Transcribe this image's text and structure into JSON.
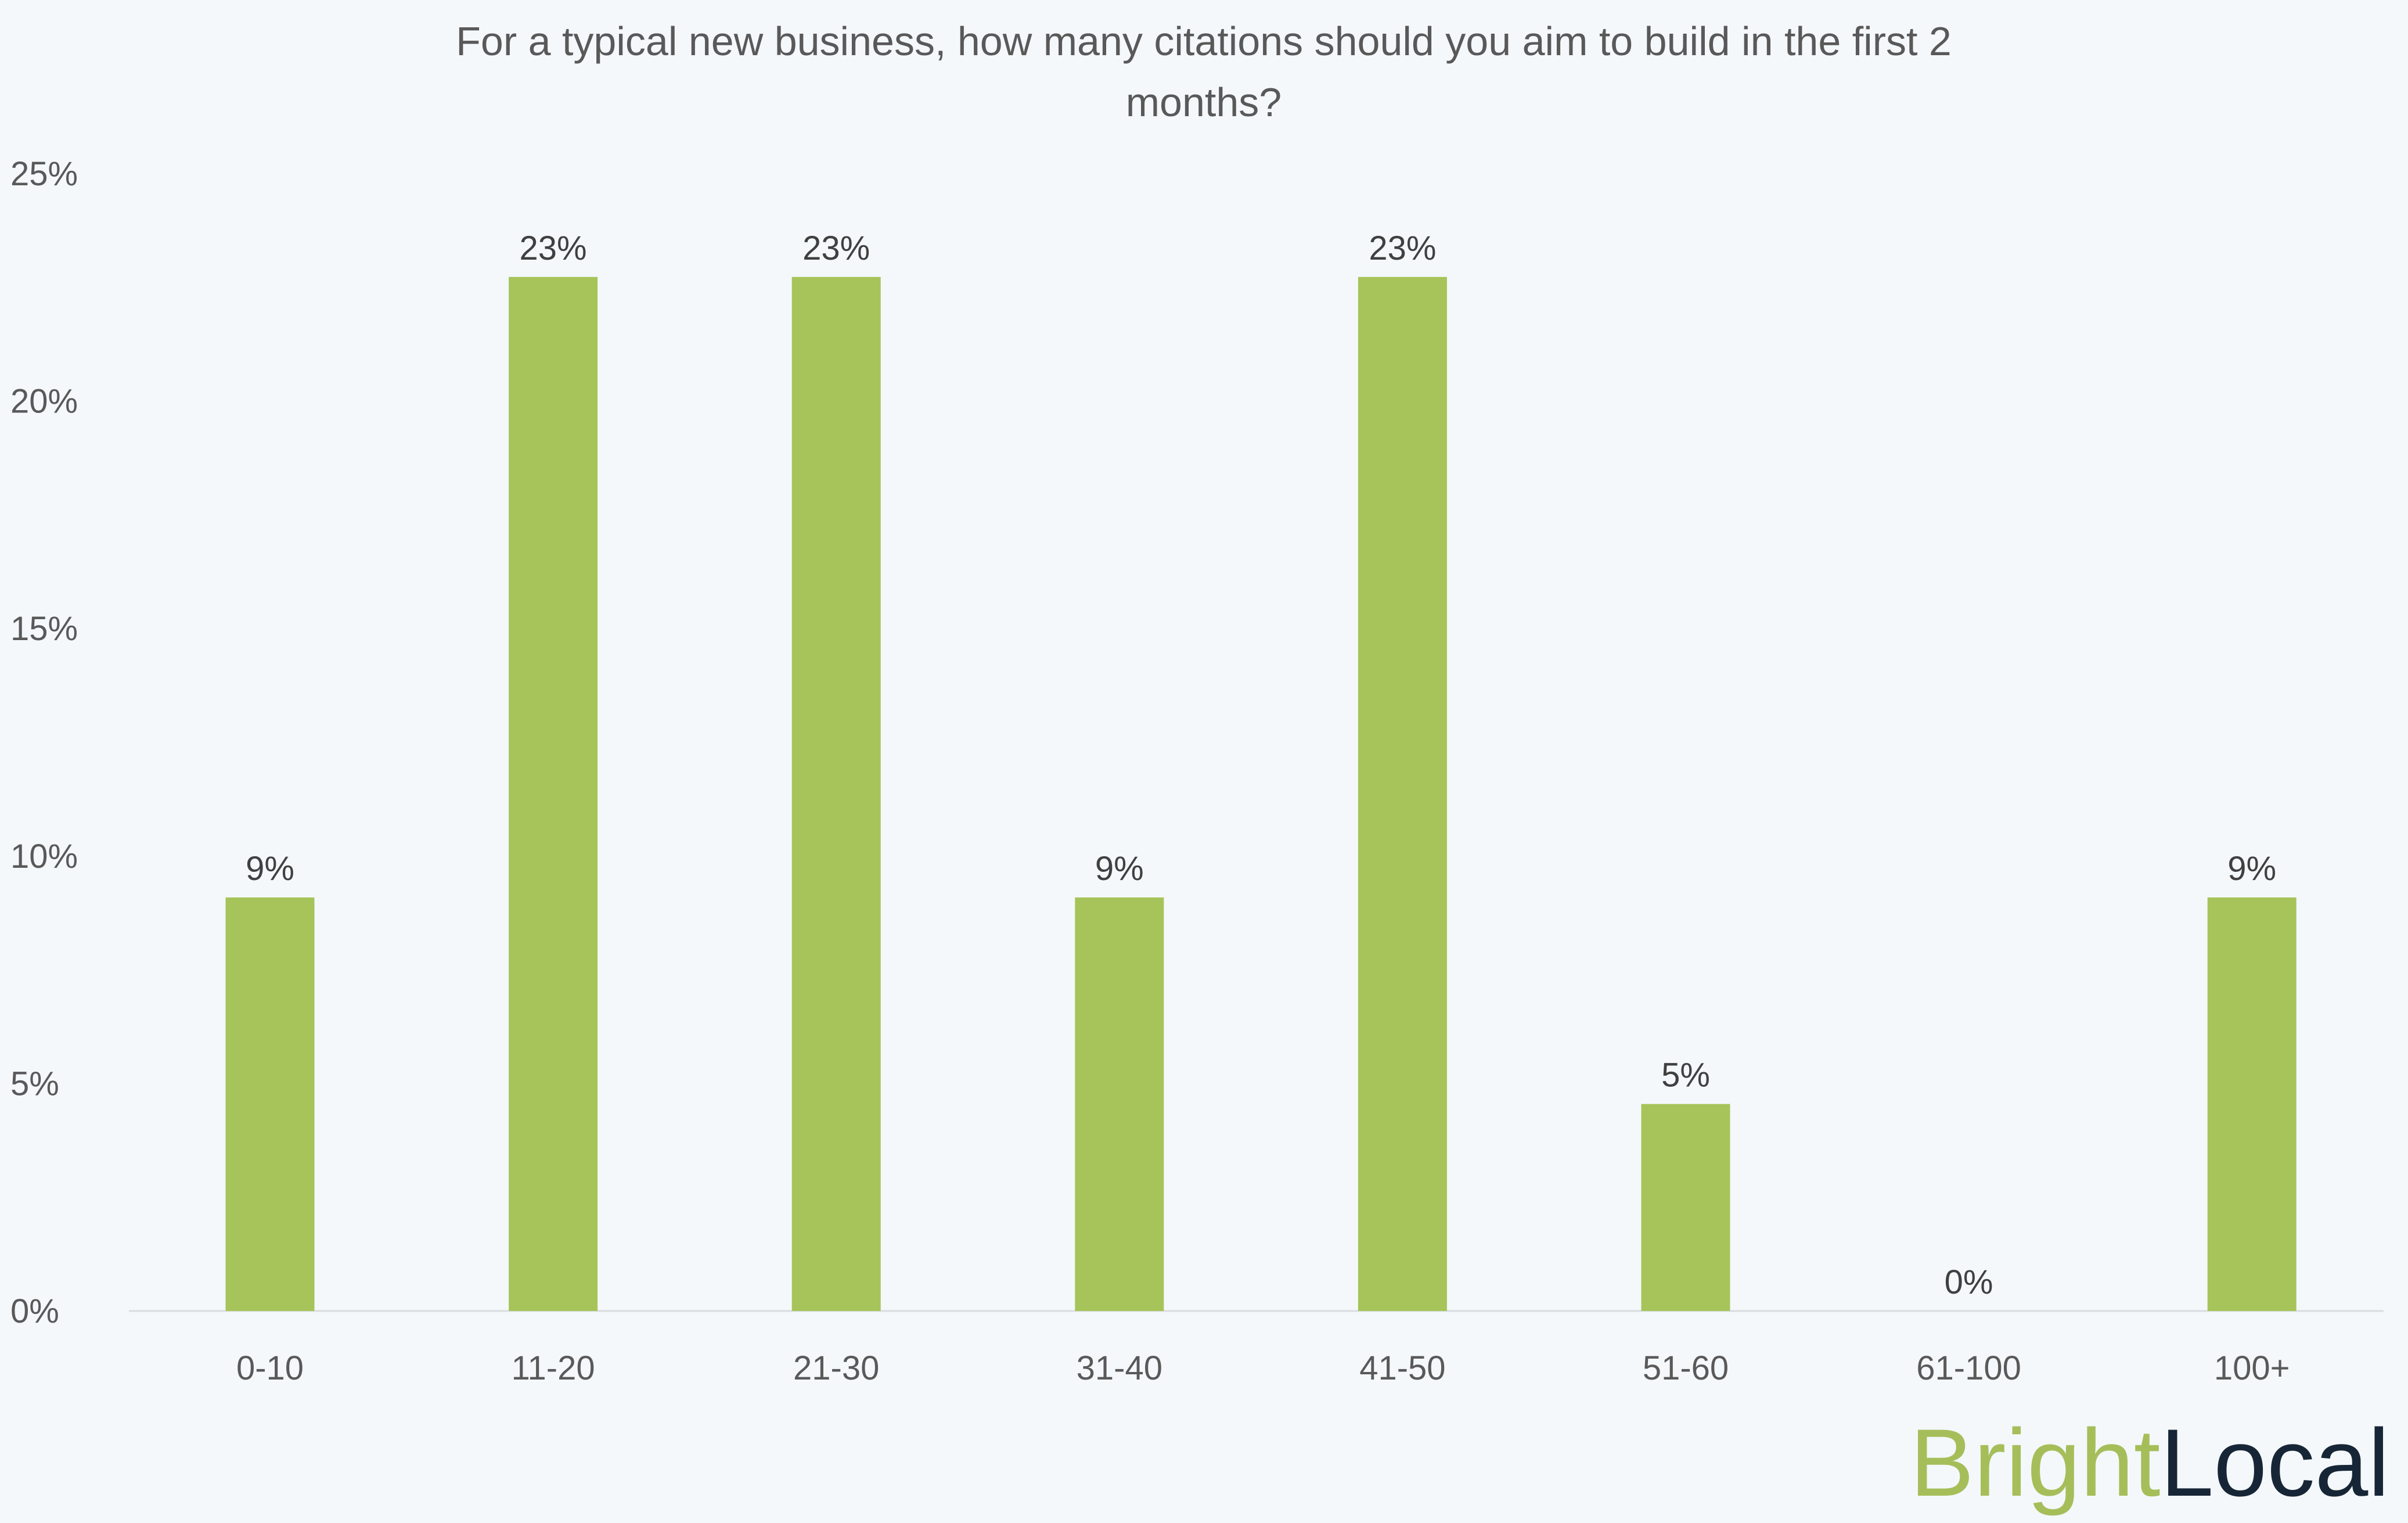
{
  "chart_data": {
    "type": "bar",
    "title": [
      "For a typical new business, how many citations should you aim to build in the first 2",
      "months?"
    ],
    "categories": [
      "0-10",
      "11-20",
      "21-30",
      "31-40",
      "41-50",
      "51-60",
      "61-100",
      "100+"
    ],
    "values": [
      9.09,
      22.73,
      22.73,
      9.09,
      22.73,
      4.55,
      0,
      9.09
    ],
    "data_labels": [
      "9%",
      "23%",
      "23%",
      "9%",
      "23%",
      "5%",
      "0%",
      "9%"
    ],
    "yticks": [
      0,
      5,
      10,
      15,
      20,
      25
    ],
    "ytick_labels": [
      "0%",
      "5%",
      "10%",
      "15%",
      "20%",
      "25%"
    ],
    "ylim": [
      0,
      25
    ],
    "xlabel": "",
    "ylabel": "",
    "grid": false,
    "legend": "none",
    "bar_color": "#a6c459"
  },
  "logo": {
    "part1": "Bright",
    "part2": "Local",
    "color1": "#a6be5a",
    "color2": "#172636"
  }
}
